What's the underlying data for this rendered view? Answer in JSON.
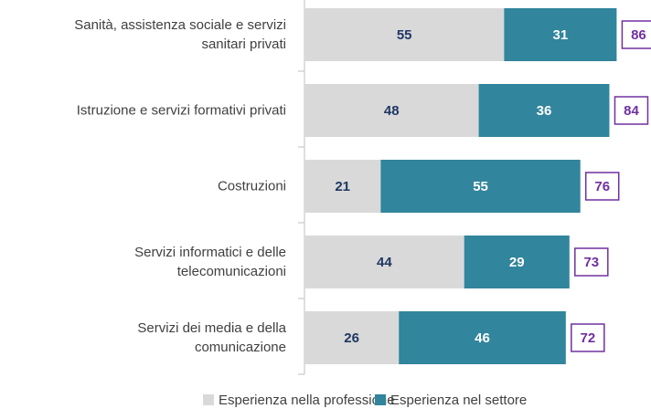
{
  "chart_data": {
    "type": "stacked_bar_horizontal",
    "categories": [
      "Sanità, assistenza sociale e servizi\nsanitari privati",
      "Istruzione e servizi formativi privati",
      "Costruzioni",
      "Servizi informatici e delle\ntelecomunicazioni",
      "Servizi dei media e della\ncomunicazione"
    ],
    "series": [
      {
        "name": "Esperienza nella professione",
        "color": "#d9d9d9",
        "label_color": "#1f3864",
        "values": [
          55,
          48,
          21,
          44,
          26
        ]
      },
      {
        "name": "Esperienza nel settore",
        "color": "#31859c",
        "label_color": "#ffffff",
        "values": [
          31,
          36,
          55,
          29,
          46
        ]
      }
    ],
    "totals": [
      86,
      84,
      76,
      73,
      72
    ],
    "total_color": "#7030a0"
  }
}
